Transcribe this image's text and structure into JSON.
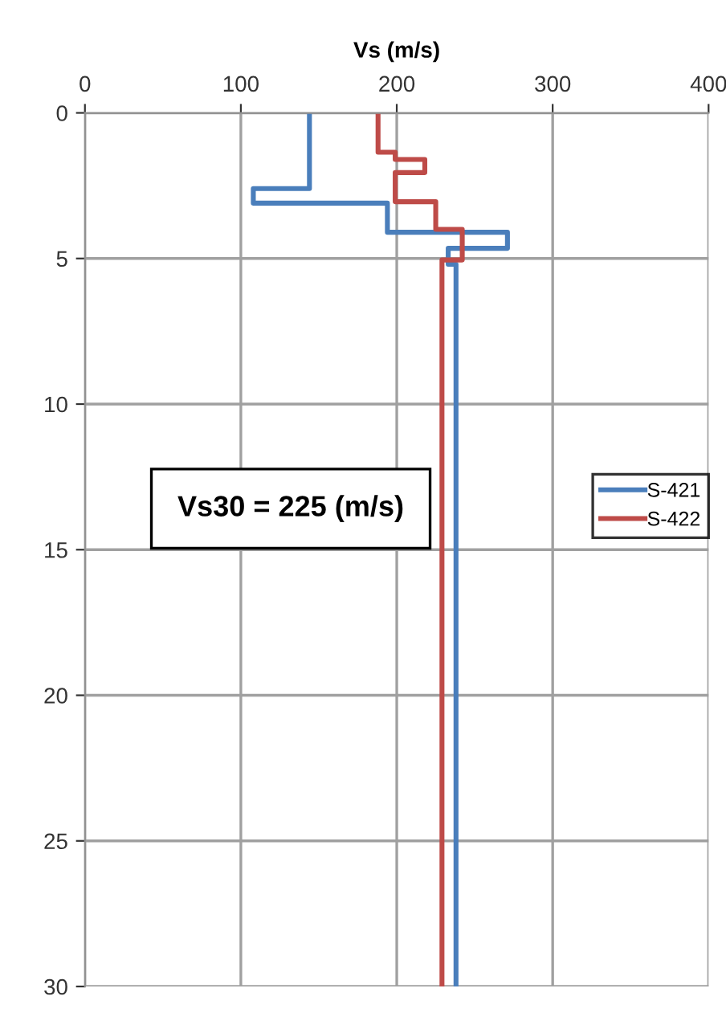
{
  "chart_data": {
    "type": "line",
    "xlabel": "Vs (m/s)",
    "xlim": [
      0,
      400
    ],
    "xticks": [
      0,
      100,
      200,
      300,
      400
    ],
    "ylim": [
      30,
      0
    ],
    "yticks": [
      0,
      5,
      10,
      15,
      20,
      25,
      30
    ],
    "grid": true,
    "legend": "right",
    "marker": "none",
    "line_style": "solid",
    "annotations": [
      "Vs30 = 225 (m/s)"
    ],
    "series": [
      {
        "name": "S-421",
        "color": "#4a7ebb",
        "x": [
          144,
          144,
          108,
          108,
          194,
          194,
          271,
          271,
          233,
          233,
          238,
          238
        ],
        "values": [
          0,
          2.6,
          2.6,
          3.1,
          3.1,
          4.1,
          4.1,
          4.65,
          4.65,
          5.2,
          5.2,
          30
        ]
      },
      {
        "name": "S-422",
        "color": "#be4b48",
        "x": [
          188,
          188,
          199,
          199,
          218,
          218,
          199,
          199,
          225,
          225,
          242,
          242,
          229,
          229
        ],
        "values": [
          0,
          1.35,
          1.35,
          1.6,
          1.6,
          2.05,
          2.05,
          3.05,
          3.05,
          4.0,
          4.0,
          5.05,
          5.05,
          30
        ]
      }
    ]
  }
}
